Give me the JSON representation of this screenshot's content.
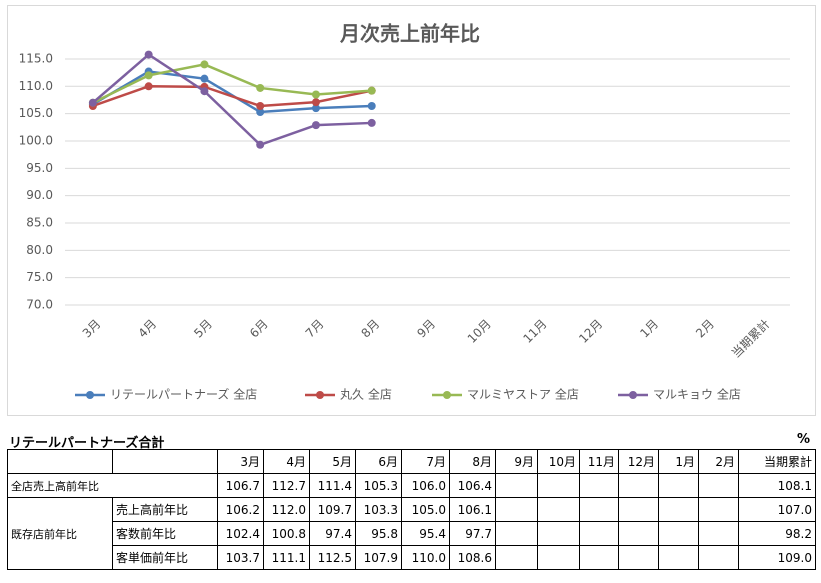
{
  "chart_data": {
    "type": "line",
    "title": "月次売上前年比",
    "categories": [
      "3月",
      "4月",
      "5月",
      "6月",
      "7月",
      "8月",
      "9月",
      "10月",
      "11月",
      "12月",
      "1月",
      "2月",
      "当期累計"
    ],
    "series": [
      {
        "name": "リテールパートナーズ 全店",
        "color": "#4a7ebb",
        "values": [
          106.7,
          112.7,
          111.4,
          105.3,
          106.0,
          106.4,
          null,
          null,
          null,
          null,
          null,
          null,
          null
        ]
      },
      {
        "name": "丸久 全店",
        "color": "#be4b48",
        "values": [
          106.4,
          110.0,
          109.9,
          106.4,
          107.1,
          109.2,
          null,
          null,
          null,
          null,
          null,
          null,
          null
        ]
      },
      {
        "name": "マルミヤストア 全店",
        "color": "#98b954",
        "values": [
          107.0,
          112.0,
          114.0,
          109.7,
          108.5,
          109.2,
          null,
          null,
          null,
          null,
          null,
          null,
          null
        ]
      },
      {
        "name": "マルキョウ 全店",
        "color": "#7d60a0",
        "values": [
          107.0,
          115.8,
          109.1,
          99.3,
          102.9,
          103.3,
          null,
          null,
          null,
          null,
          null,
          null,
          null
        ]
      }
    ],
    "ylim": [
      70,
      117.5
    ],
    "yticks": [
      {
        "value": 70,
        "label": "70.0"
      },
      {
        "value": 75,
        "label": "75.0"
      },
      {
        "value": 80,
        "label": "80.0"
      },
      {
        "value": 85,
        "label": "85.0"
      },
      {
        "value": 90,
        "label": "90.0"
      },
      {
        "value": 95,
        "label": "95.0"
      },
      {
        "value": 100,
        "label": "100.0"
      },
      {
        "value": 105,
        "label": "105.0"
      },
      {
        "value": 110,
        "label": "110.0"
      },
      {
        "value": 115,
        "label": "115.0"
      }
    ],
    "grid": true,
    "legend": "bottom"
  },
  "table": {
    "title": "リテールパートナーズ合計",
    "unit": "%",
    "group_label": "既存店前年比",
    "rows": [
      {
        "label": "全店売上高前年比",
        "months": [
          "106.7",
          "112.7",
          "111.4",
          "105.3",
          "106.0",
          "106.4"
        ],
        "total": "108.1"
      },
      {
        "label": "売上高前年比",
        "months": [
          "106.2",
          "112.0",
          "109.7",
          "103.3",
          "105.0",
          "106.1"
        ],
        "total": "107.0"
      },
      {
        "label": "客数前年比",
        "months": [
          "102.4",
          "100.8",
          "97.4",
          "95.8",
          "95.4",
          "97.7"
        ],
        "total": "98.2"
      },
      {
        "label": "客単価前年比",
        "months": [
          "103.7",
          "111.1",
          "112.5",
          "107.9",
          "110.0",
          "108.6"
        ],
        "total": "109.0"
      }
    ]
  }
}
